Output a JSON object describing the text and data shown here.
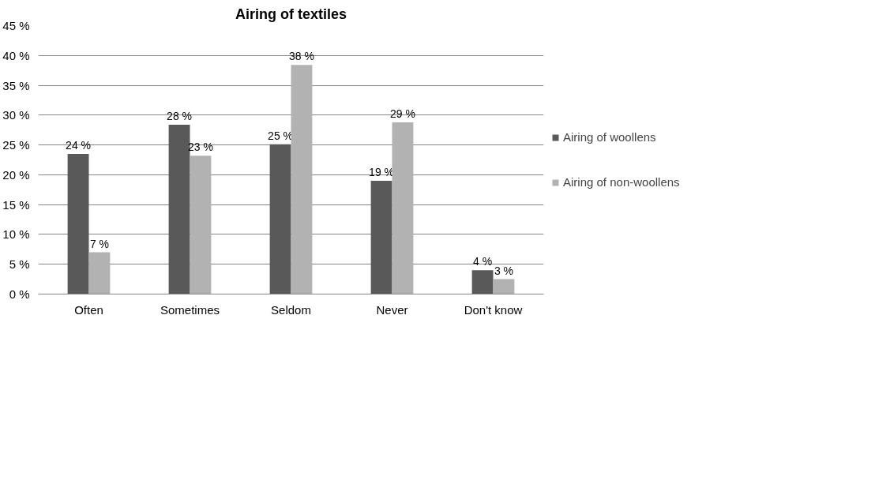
{
  "chart_data": {
    "type": "bar",
    "title": "Airing of textiles",
    "categories": [
      "Often",
      "Sometimes",
      "Seldom",
      "Never",
      "Don't know"
    ],
    "series": [
      {
        "name": "Airing of woollens",
        "color": "#595959",
        "values": [
          23.5,
          28.4,
          25.1,
          19.0,
          4.0
        ],
        "value_labels": [
          "24 %",
          "28 %",
          "25 %",
          "19 %",
          "4 %"
        ]
      },
      {
        "name": "Airing of non-woollens",
        "color": "#b2b2b2",
        "values": [
          7.0,
          23.2,
          38.4,
          28.8,
          2.5
        ],
        "value_labels": [
          "7 %",
          "23 %",
          "38 %",
          "29 %",
          "3 %"
        ]
      }
    ],
    "ylim": [
      0,
      45
    ],
    "yticks": [
      {
        "value": 0,
        "label": "0 %"
      },
      {
        "value": 5,
        "label": "5 %"
      },
      {
        "value": 10,
        "label": "10 %"
      },
      {
        "value": 15,
        "label": "15 %"
      },
      {
        "value": 20,
        "label": "20 %"
      },
      {
        "value": 25,
        "label": "25 %"
      },
      {
        "value": 30,
        "label": "30 %"
      },
      {
        "value": 35,
        "label": "35 %"
      },
      {
        "value": 40,
        "label": "40 %"
      },
      {
        "value": 45,
        "label": "45 %"
      }
    ],
    "grid": "y",
    "legend": "right"
  }
}
